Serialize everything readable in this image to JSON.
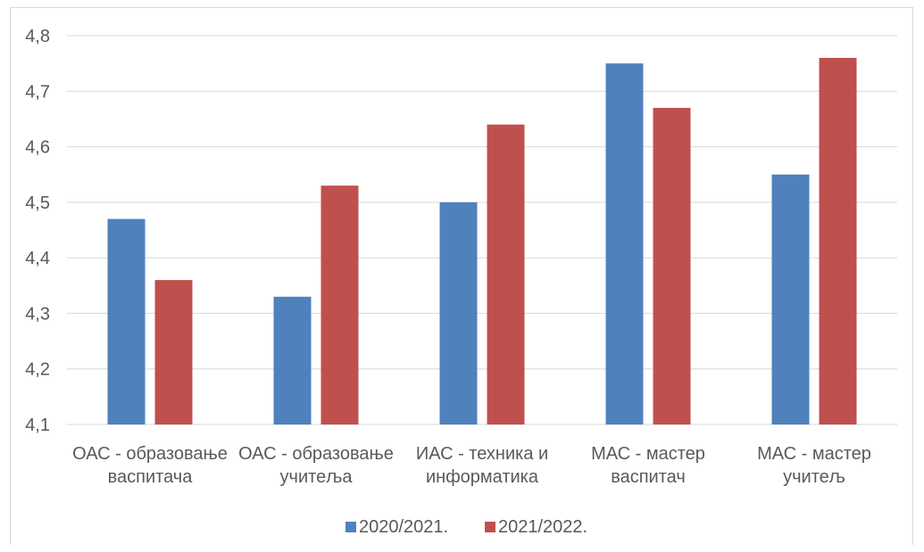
{
  "chart_data": {
    "type": "bar",
    "categories": [
      [
        "ОАС - образовање",
        "васпитача"
      ],
      [
        "ОАС - образовање",
        "учитеља"
      ],
      [
        "ИАС - техника и",
        "информатика"
      ],
      [
        "МАС - мастер",
        "васпитач"
      ],
      [
        "МАС - мастер",
        "учитељ"
      ]
    ],
    "series": [
      {
        "name": "2020/2021.",
        "color": "#4f81bd",
        "values": [
          4.47,
          4.33,
          4.5,
          4.75,
          4.55
        ]
      },
      {
        "name": "2021/2022.",
        "color": "#c0504d",
        "values": [
          4.36,
          4.53,
          4.64,
          4.67,
          4.76
        ]
      }
    ],
    "ylim": [
      4.1,
      4.8
    ],
    "yticks": [
      "4,1",
      "4,2",
      "4,3",
      "4,4",
      "4,5",
      "4,6",
      "4,7",
      "4,8"
    ],
    "grid": true,
    "legend": "bottom",
    "title": "",
    "xlabel": "",
    "ylabel": ""
  }
}
